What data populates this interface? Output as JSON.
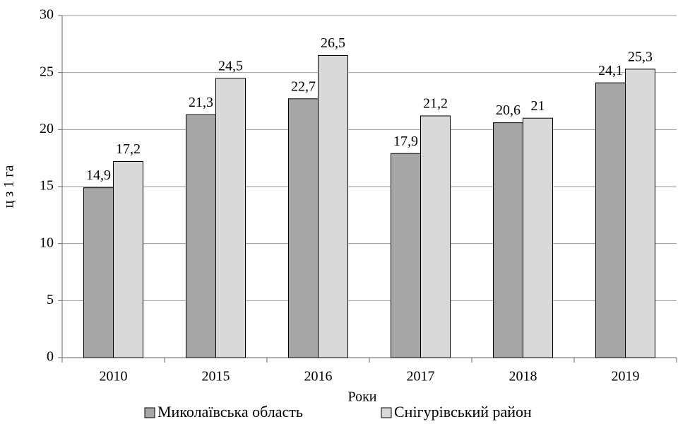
{
  "chart_data": {
    "type": "bar",
    "xlabel": "Роки",
    "ylabel": "ц з 1 га",
    "categories": [
      "2010",
      "2015",
      "2016",
      "2017",
      "2018",
      "2019"
    ],
    "series": [
      {
        "name": "Миколаївська область",
        "color": "#a6a6a6",
        "values": [
          14.9,
          21.3,
          22.7,
          17.9,
          20.6,
          24.1
        ],
        "value_labels": [
          "14,9",
          "21,3",
          "22,7",
          "17,9",
          "20,6",
          "24,1"
        ]
      },
      {
        "name": "Снігурівський район",
        "color": "#d9d9d9",
        "values": [
          17.2,
          24.5,
          26.5,
          21.2,
          21,
          25.3
        ],
        "value_labels": [
          "17,2",
          "24,5",
          "26,5",
          "21,2",
          "21",
          "25,3"
        ]
      }
    ],
    "ylim": [
      0,
      30
    ],
    "yticks": [
      0,
      5,
      10,
      15,
      20,
      25,
      30
    ],
    "grid": true,
    "legend": "bottom"
  }
}
